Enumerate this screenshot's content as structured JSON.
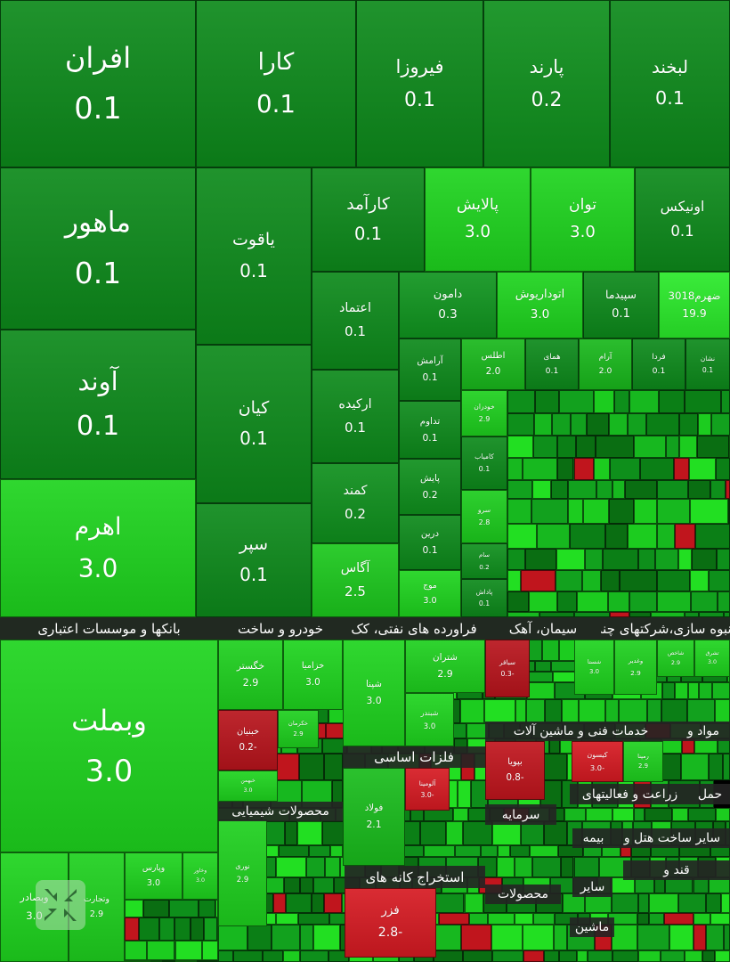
{
  "tiles": [
    {
      "name": "افران",
      "value": "0.1",
      "color": "#0d8a1b"
    },
    {
      "name": "کارا",
      "value": "0.1",
      "color": "#0d8a1b"
    },
    {
      "name": "فیروزا",
      "value": "0.1",
      "color": "#0d8a1b"
    },
    {
      "name": "پارند",
      "value": "0.2",
      "color": "#0f901d"
    },
    {
      "name": "لبخند",
      "value": "0.1",
      "color": "#0d8a1b"
    },
    {
      "name": "ماهور",
      "value": "0.1",
      "color": "#0d8a1b"
    },
    {
      "name": "آوند",
      "value": "0.1",
      "color": "#0d8a1b"
    },
    {
      "name": "اهرم",
      "value": "3.0",
      "color": "#1ed41e"
    },
    {
      "name": "یاقوت",
      "value": "0.1",
      "color": "#0d8a1b"
    },
    {
      "name": "کیان",
      "value": "0.1",
      "color": "#0d8a1b"
    },
    {
      "name": "سپر",
      "value": "0.1",
      "color": "#0d8a1b"
    },
    {
      "name": "کارآمد",
      "value": "0.1",
      "color": "#0d8a1b"
    },
    {
      "name": "پالایش",
      "value": "3.0",
      "color": "#1ed41e"
    },
    {
      "name": "توان",
      "value": "3.0",
      "color": "#1ed41e"
    },
    {
      "name": "اونیکس",
      "value": "0.1",
      "color": "#0d8a1b"
    },
    {
      "name": "اعتماد",
      "value": "0.1",
      "color": "#0d8a1b"
    },
    {
      "name": "دامون",
      "value": "0.3",
      "color": "#10951f"
    },
    {
      "name": "اتوداریوش",
      "value": "3.0",
      "color": "#1ed41e"
    },
    {
      "name": "سپیدما",
      "value": "0.1",
      "color": "#0d8a1b"
    },
    {
      "name": "ضهرم3018",
      "value": "19.9",
      "color": "#2aea2a"
    },
    {
      "name": "ارکیده",
      "value": "0.1",
      "color": "#0d8a1b"
    },
    {
      "name": "کمند",
      "value": "0.2",
      "color": "#0f901d"
    },
    {
      "name": "آگاس",
      "value": "2.5",
      "color": "#1cc81d"
    },
    {
      "name": "آرامش",
      "value": "0.1",
      "color": "#0d8a1b"
    },
    {
      "name": "تداوم",
      "value": "0.1",
      "color": "#0d8a1b"
    },
    {
      "name": "پایش",
      "value": "0.2",
      "color": "#0f901d"
    },
    {
      "name": "درین",
      "value": "0.1",
      "color": "#0d8a1b"
    },
    {
      "name": "موج",
      "value": "3.0",
      "color": "#1ed41e"
    },
    {
      "name": "اطلس",
      "value": "2.0",
      "color": "#19b81c"
    },
    {
      "name": "همای",
      "value": "0.1",
      "color": "#0d8a1b"
    },
    {
      "name": "آرام",
      "value": "2.0",
      "color": "#19b81c"
    },
    {
      "name": "فردا",
      "value": "0.1",
      "color": "#0d8a1b"
    },
    {
      "name": "نشان",
      "value": "0.1",
      "color": "#0d8a1b"
    },
    {
      "name": "خودران",
      "value": "2.9",
      "color": "#1ed01e"
    },
    {
      "name": "کامیاب",
      "value": "0.1",
      "color": "#0d8a1b"
    },
    {
      "name": "سرو",
      "value": "2.8",
      "color": "#1ccc1d"
    },
    {
      "name": "سام",
      "value": "0.2",
      "color": "#0f901d"
    },
    {
      "name": "پاداش",
      "value": "0.1",
      "color": "#0d8a1b"
    },
    {
      "name": "وبملت",
      "value": "3.0",
      "color": "#1ed41e"
    },
    {
      "name": "وبصادر",
      "value": "3.0",
      "color": "#1ed41e"
    },
    {
      "name": "وتجارت",
      "value": "2.9",
      "color": "#1ed01e"
    },
    {
      "name": "وپارس",
      "value": "3.0",
      "color": "#1ed41e"
    },
    {
      "name": "وخاور",
      "value": "3.0",
      "color": "#1ed41e"
    },
    {
      "name": "خگستر",
      "value": "2.9",
      "color": "#1ed01e"
    },
    {
      "name": "خزامیا",
      "value": "3.0",
      "color": "#1ed41e"
    },
    {
      "name": "خبنیان",
      "value": "0.2-",
      "color": "#b8141c"
    },
    {
      "name": "خکرمان",
      "value": "2.9",
      "color": "#1ed01e"
    },
    {
      "name": "خبهمن",
      "value": "3.0",
      "color": "#1ed41e"
    },
    {
      "name": "نوری",
      "value": "2.9",
      "color": "#1ed01e"
    },
    {
      "name": "شپنا",
      "value": "3.0",
      "color": "#1ed41e"
    },
    {
      "name": "شتران",
      "value": "2.9",
      "color": "#1ed01e"
    },
    {
      "name": "شبندر",
      "value": "3.0",
      "color": "#1ed41e"
    },
    {
      "name": "سباقر",
      "value": "0.3-",
      "color": "#b8141c"
    },
    {
      "name": "فولاد",
      "value": "2.1",
      "color": "#19bc1c"
    },
    {
      "name": "آلومینا",
      "value": "3.0-",
      "color": "#d61a22"
    },
    {
      "name": "فزر",
      "value": "2.8-",
      "color": "#d61a22"
    },
    {
      "name": "شستا",
      "value": "3.0",
      "color": "#1ed41e"
    },
    {
      "name": "وغدیر",
      "value": "2.9",
      "color": "#1ed01e"
    },
    {
      "name": "شاخص",
      "value": "2.9",
      "color": "#1ed01e"
    },
    {
      "name": "تشرق",
      "value": "3.0",
      "color": "#1ed41e"
    },
    {
      "name": "بپویا",
      "value": "0.8-",
      "color": "#c0151d"
    },
    {
      "name": "کیسون",
      "value": "3.0-",
      "color": "#d61a22"
    },
    {
      "name": "رمپنا",
      "value": "2.9",
      "color": "#1ed01e"
    }
  ],
  "sector_labels": [
    "بانکها و موسسات اعتباری",
    "خودرو و ساخت",
    "فراورده های نفتی، کک",
    "سیمان، آهک",
    "انبوه سازی،شرکتهای چند",
    "فلزات اساسی",
    "محصولات شیمیایی",
    "استخراج کانه های",
    "خدمات فنی و ماشین آلات",
    "مواد و",
    "زراعت و فعالیتهای",
    "حمل",
    "سرمایه",
    "بیمه",
    "سایر ساخت هتل و",
    "قند و",
    "محصولات",
    "سایر",
    "ماشین"
  ]
}
